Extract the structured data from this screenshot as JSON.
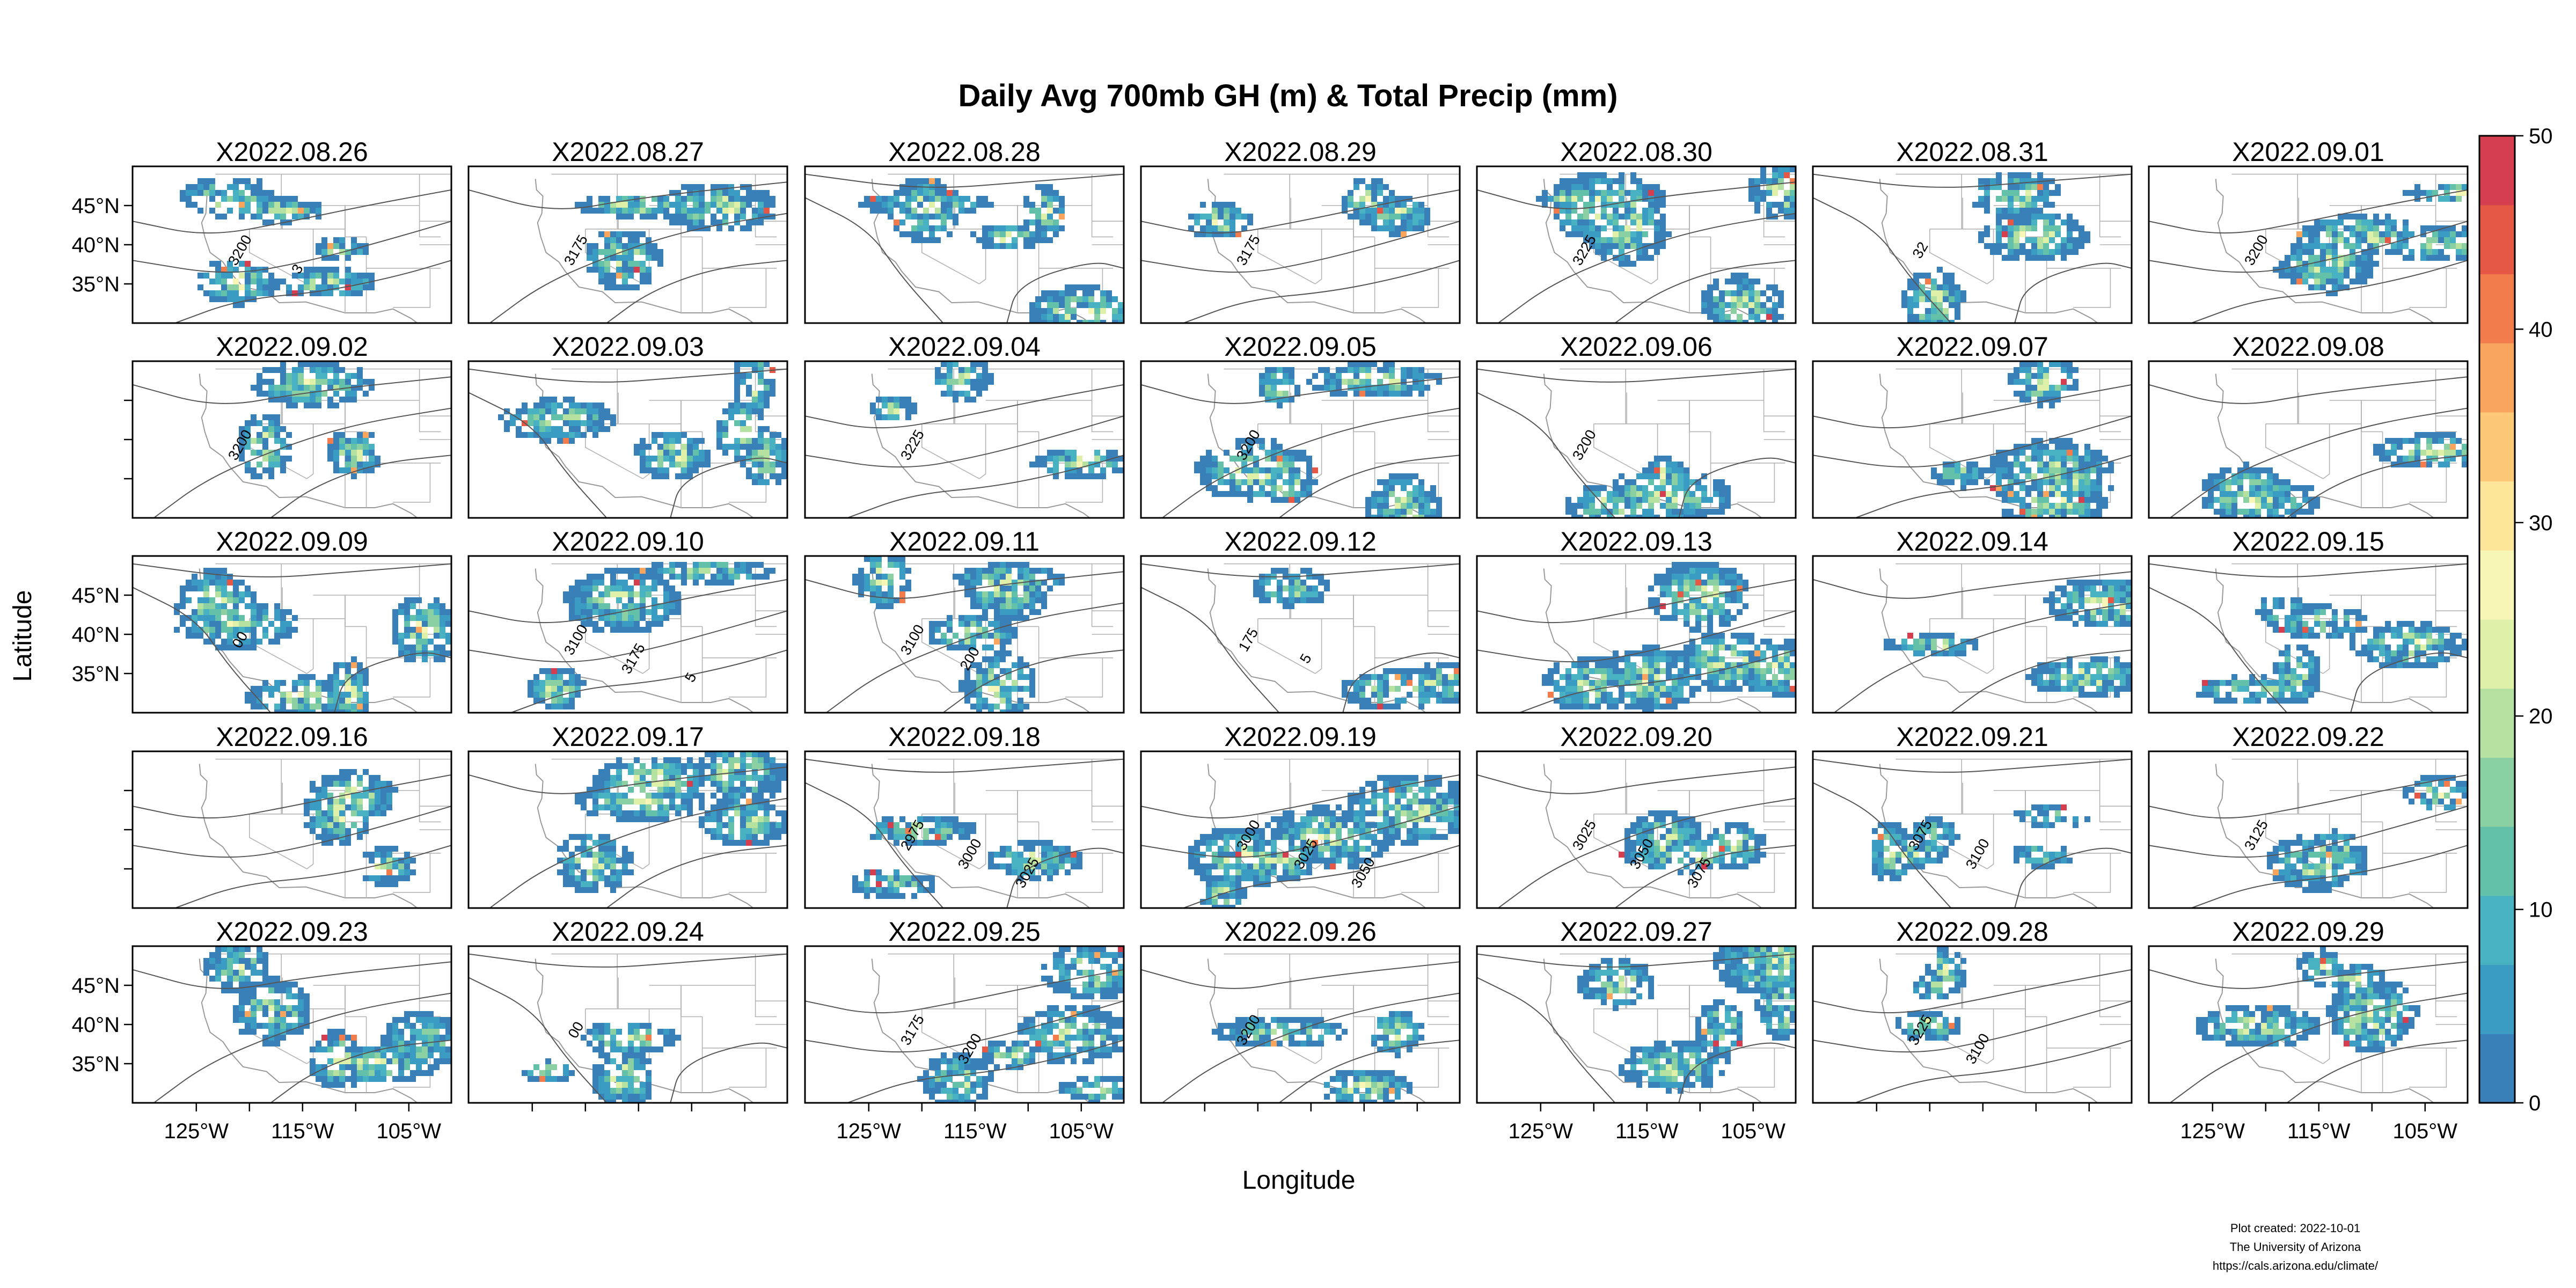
{
  "title": "Daily Avg 700mb GH (m) & Total Precip (mm)",
  "footer": {
    "line1": "Plot created: 2022-10-01",
    "line2": "The University of Arizona",
    "line3": "https://cals.arizona.edu/climate/"
  },
  "chart_data": {
    "type": "heatmap",
    "title": "Daily Avg 700mb GH (m) & Total Precip (mm)",
    "xlabel": "Longitude",
    "ylabel": "Latitude",
    "x_ticks": [
      "125°W",
      "115°W",
      "105°W"
    ],
    "y_ticks": [
      "45°N",
      "40°N",
      "35°N"
    ],
    "xlim": [
      -131,
      -101
    ],
    "ylim": [
      30,
      50
    ],
    "colorbar": {
      "min": 0,
      "max": 50,
      "ticks": [
        "0",
        "10",
        "20",
        "30",
        "40",
        "50"
      ],
      "colors": [
        "#3a80b8",
        "#3a9bc3",
        "#49b2c2",
        "#63c1a9",
        "#8ad0a3",
        "#b5e1a1",
        "#dff0a8",
        "#f8f6b7",
        "#fde59a",
        "#fdc977",
        "#f9a55e",
        "#f37c4d",
        "#e55846",
        "#d53e4f"
      ]
    },
    "panels": [
      {
        "date": "X2022.08.26",
        "contours": [
          "3200",
          "3"
        ]
      },
      {
        "date": "X2022.08.27",
        "contours": [
          "3175"
        ]
      },
      {
        "date": "X2022.08.28",
        "contours": []
      },
      {
        "date": "X2022.08.29",
        "contours": [
          "3175"
        ]
      },
      {
        "date": "X2022.08.30",
        "contours": [
          "3225"
        ]
      },
      {
        "date": "X2022.08.31",
        "contours": [
          "32"
        ]
      },
      {
        "date": "X2022.09.01",
        "contours": [
          "3200"
        ]
      },
      {
        "date": "X2022.09.02",
        "contours": [
          "3200"
        ]
      },
      {
        "date": "X2022.09.03",
        "contours": []
      },
      {
        "date": "X2022.09.04",
        "contours": [
          "3225"
        ]
      },
      {
        "date": "X2022.09.05",
        "contours": [
          "3200"
        ]
      },
      {
        "date": "X2022.09.06",
        "contours": [
          "3200"
        ]
      },
      {
        "date": "X2022.09.07",
        "contours": []
      },
      {
        "date": "X2022.09.08",
        "contours": []
      },
      {
        "date": "X2022.09.09",
        "contours": [
          "00"
        ]
      },
      {
        "date": "X2022.09.10",
        "contours": [
          "3100",
          "3175",
          "5"
        ]
      },
      {
        "date": "X2022.09.11",
        "contours": [
          "3100",
          "200"
        ]
      },
      {
        "date": "X2022.09.12",
        "contours": [
          "175",
          "5"
        ]
      },
      {
        "date": "X2022.09.13",
        "contours": []
      },
      {
        "date": "X2022.09.14",
        "contours": []
      },
      {
        "date": "X2022.09.15",
        "contours": []
      },
      {
        "date": "X2022.09.16",
        "contours": []
      },
      {
        "date": "X2022.09.17",
        "contours": []
      },
      {
        "date": "X2022.09.18",
        "contours": [
          "2975",
          "3000",
          "3025"
        ]
      },
      {
        "date": "X2022.09.19",
        "contours": [
          "3000",
          "3025",
          "3050"
        ]
      },
      {
        "date": "X2022.09.20",
        "contours": [
          "3025",
          "3050",
          "3075"
        ]
      },
      {
        "date": "X2022.09.21",
        "contours": [
          "3075",
          "3100"
        ]
      },
      {
        "date": "X2022.09.22",
        "contours": [
          "3125"
        ]
      },
      {
        "date": "X2022.09.23",
        "contours": []
      },
      {
        "date": "X2022.09.24",
        "contours": [
          "00"
        ]
      },
      {
        "date": "X2022.09.25",
        "contours": [
          "3175",
          "3200"
        ]
      },
      {
        "date": "X2022.09.26",
        "contours": [
          "3200"
        ]
      },
      {
        "date": "X2022.09.27",
        "contours": []
      },
      {
        "date": "X2022.09.28",
        "contours": [
          "3225",
          "3100"
        ]
      },
      {
        "date": "X2022.09.29",
        "contours": []
      }
    ]
  }
}
